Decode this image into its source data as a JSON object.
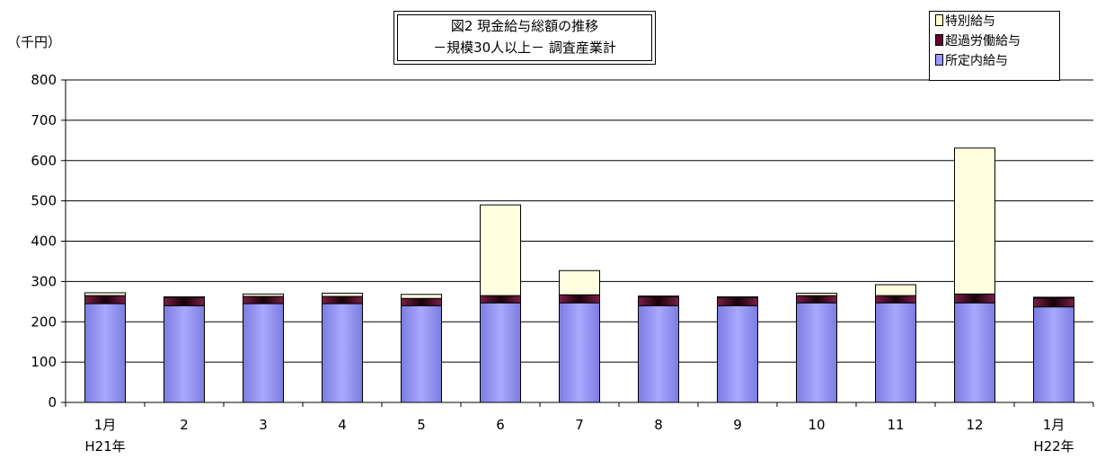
{
  "chart_data": {
    "type": "bar",
    "stacked": true,
    "title_lines": [
      "図2 現金給与総額の推移",
      "－規模30人以上－ 調査産業計"
    ],
    "unit_label": "（千円）",
    "categories": [
      "1月",
      "2",
      "3",
      "4",
      "5",
      "6",
      "7",
      "8",
      "9",
      "10",
      "11",
      "12",
      "1月"
    ],
    "category_sublabels": [
      "H21年",
      "",
      "",
      "",
      "",
      "",
      "",
      "",
      "",
      "",
      "",
      "",
      "H22年"
    ],
    "ylim": [
      0,
      800
    ],
    "yticks": [
      0,
      100,
      200,
      300,
      400,
      500,
      600,
      700,
      800
    ],
    "grid": true,
    "legend_position": "top-right",
    "series": [
      {
        "name": "所定内給与",
        "color": "#9999ff",
        "values": [
          245,
          240,
          245,
          245,
          240,
          247,
          247,
          240,
          240,
          247,
          247,
          247,
          237
        ]
      },
      {
        "name": "超過労働給与",
        "color": "#993366",
        "values": [
          20,
          20,
          18,
          18,
          18,
          18,
          20,
          22,
          20,
          18,
          18,
          22,
          22
        ]
      },
      {
        "name": "特別給与",
        "color": "#ffffcc",
        "values": [
          7,
          2,
          6,
          8,
          10,
          225,
          60,
          2,
          2,
          6,
          27,
          362,
          2
        ]
      }
    ]
  }
}
